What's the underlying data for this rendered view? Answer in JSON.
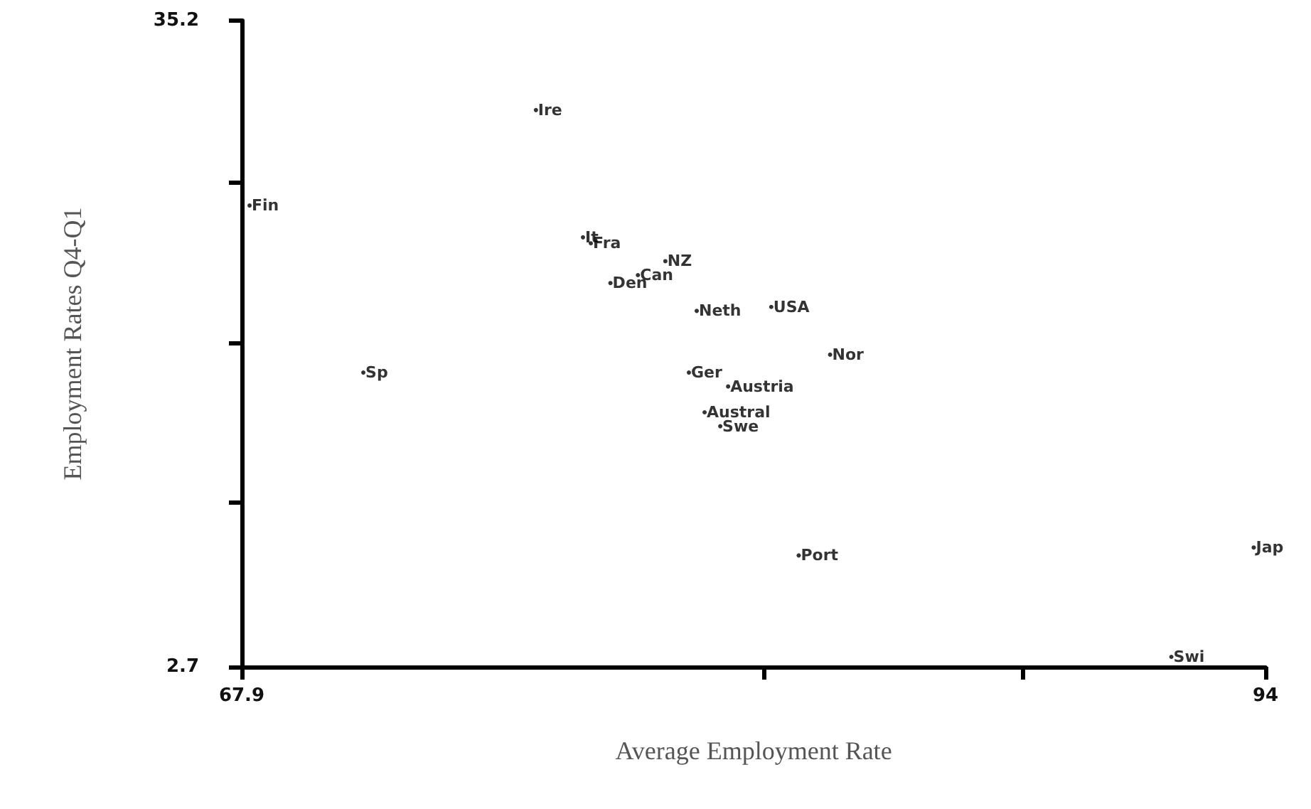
{
  "chart_data": {
    "type": "scatter",
    "xlabel": "Average Employment Rate",
    "ylabel": "Employment Rates Q4-Q1",
    "xlim": [
      67.9,
      94
    ],
    "ylim": [
      2.7,
      35.2
    ],
    "xticks": [
      67.9,
      {
        "value": 81.2,
        "label": null
      },
      {
        "value": 87.8,
        "label": null
      },
      94
    ],
    "yticks": [
      2.7,
      {
        "value": 11,
        "label": null
      },
      {
        "value": 19,
        "label": null
      },
      {
        "value": 27.1,
        "label": null
      },
      35.2
    ],
    "grid": false,
    "marker": "circle",
    "legend": false,
    "series": [
      {
        "name": "Ire",
        "x": [
          75.4
        ],
        "values": [
          30.7
        ]
      },
      {
        "name": "Fin",
        "x": [
          68.1
        ],
        "values": [
          25.9
        ]
      },
      {
        "name": "It",
        "x": [
          76.6
        ],
        "values": [
          24.3
        ]
      },
      {
        "name": "Fra",
        "x": [
          76.8
        ],
        "values": [
          24.0
        ]
      },
      {
        "name": "NZ",
        "x": [
          78.7
        ],
        "values": [
          23.1
        ]
      },
      {
        "name": "Can",
        "x": [
          78.0
        ],
        "values": [
          22.4
        ]
      },
      {
        "name": "Den",
        "x": [
          77.3
        ],
        "values": [
          22.0
        ]
      },
      {
        "name": "Neth",
        "x": [
          79.5
        ],
        "values": [
          20.6
        ]
      },
      {
        "name": "USA",
        "x": [
          81.4
        ],
        "values": [
          20.8
        ]
      },
      {
        "name": "Nor",
        "x": [
          82.9
        ],
        "values": [
          18.4
        ]
      },
      {
        "name": "Ger",
        "x": [
          79.3
        ],
        "values": [
          17.5
        ]
      },
      {
        "name": "Austria",
        "x": [
          80.3
        ],
        "values": [
          16.8
        ]
      },
      {
        "name": "Austral",
        "x": [
          79.7
        ],
        "values": [
          15.5
        ]
      },
      {
        "name": "Swe",
        "x": [
          80.1
        ],
        "values": [
          14.8
        ]
      },
      {
        "name": "Sp",
        "x": [
          71.0
        ],
        "values": [
          17.5
        ]
      },
      {
        "name": "Port",
        "x": [
          82.1
        ],
        "values": [
          8.3
        ]
      },
      {
        "name": "Jap",
        "x": [
          93.7
        ],
        "values": [
          8.7
        ]
      },
      {
        "name": "Swi",
        "x": [
          91.6
        ],
        "values": [
          3.2
        ]
      }
    ]
  }
}
